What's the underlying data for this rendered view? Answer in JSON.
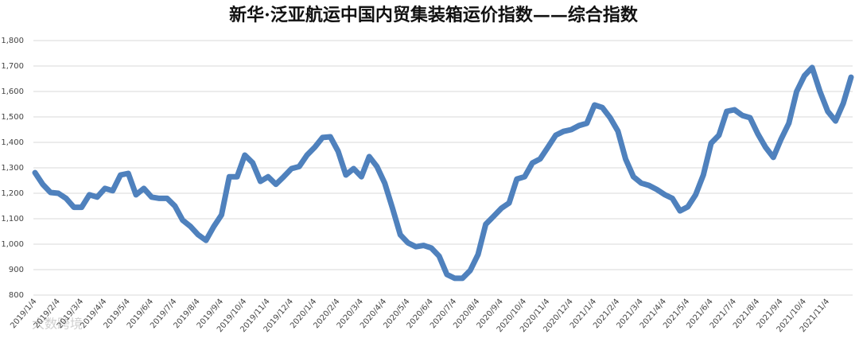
{
  "chart_data": {
    "type": "line",
    "title": "新华·泛亚航运中国内贸集装箱运价指数——综合指数",
    "watermark": "大数跨境",
    "categories": [
      "2019/1/4",
      null,
      null,
      "2019/2/4",
      null,
      null,
      "2019/3/4",
      null,
      null,
      "2019/4/4",
      null,
      null,
      "2019/5/4",
      null,
      null,
      "2019/6/4",
      null,
      null,
      "2019/7/4",
      null,
      null,
      "2019/8/4",
      null,
      null,
      "2019/9/4",
      null,
      null,
      "2019/10/4",
      null,
      null,
      "2019/11/4",
      null,
      null,
      "2019/12/4",
      null,
      null,
      "2020/1/4",
      null,
      null,
      "2020/2/4",
      null,
      null,
      "2020/3/4",
      null,
      null,
      "2020/4/4",
      null,
      null,
      "2020/5/4",
      null,
      null,
      "2020/6/4",
      null,
      null,
      "2020/7/4",
      null,
      null,
      "2020/8/4",
      null,
      null,
      "2020/9/4",
      null,
      null,
      "2020/10/4",
      null,
      null,
      "2020/11/4",
      null,
      null,
      "2020/12/4",
      null,
      null,
      "2021/1/4",
      null,
      null,
      "2021/2/4",
      null,
      null,
      "2021/3/4",
      null,
      null,
      "2021/4/4",
      null,
      null,
      "2021/5/4",
      null,
      null,
      "2021/6/4",
      null,
      null,
      "2021/7/4",
      null,
      null,
      "2021/8/4",
      null,
      null,
      "2021/9/4",
      null,
      null,
      "2021/10/4",
      null,
      null,
      "2021/11/4",
      null,
      null,
      null
    ],
    "series": [
      {
        "name": "综合指数",
        "color": "#4f81bd",
        "values": [
          1281,
          1235,
          1203,
          1200,
          1180,
          1145,
          1145,
          1194,
          1185,
          1219,
          1210,
          1272,
          1278,
          1194,
          1219,
          1185,
          1180,
          1180,
          1150,
          1094,
          1070,
          1037,
          1015,
          1069,
          1115,
          1265,
          1265,
          1350,
          1320,
          1247,
          1265,
          1235,
          1265,
          1297,
          1305,
          1350,
          1381,
          1419,
          1422,
          1365,
          1272,
          1297,
          1265,
          1344,
          1305,
          1240,
          1141,
          1037,
          1005,
          990,
          995,
          985,
          953,
          881,
          866,
          866,
          897,
          959,
          1078,
          1109,
          1141,
          1162,
          1256,
          1265,
          1319,
          1335,
          1381,
          1428,
          1443,
          1450,
          1466,
          1475,
          1547,
          1537,
          1497,
          1444,
          1334,
          1265,
          1240,
          1231,
          1215,
          1195,
          1180,
          1131,
          1147,
          1194,
          1272,
          1397,
          1428,
          1522,
          1528,
          1506,
          1497,
          1434,
          1381,
          1341,
          1413,
          1475,
          1600,
          1662,
          1694,
          1600,
          1522,
          1484,
          1553,
          1656
        ]
      }
    ],
    "ylim": [
      800,
      1800
    ],
    "yticks": [
      {
        "value": 800,
        "label": "800"
      },
      {
        "value": 900,
        "label": "900"
      },
      {
        "value": 1000,
        "label": "1,000"
      },
      {
        "value": 1100,
        "label": "1,100"
      },
      {
        "value": 1200,
        "label": "1,200"
      },
      {
        "value": 1300,
        "label": "1,300"
      },
      {
        "value": 1400,
        "label": "1,400"
      },
      {
        "value": 1500,
        "label": "1,500"
      },
      {
        "value": 1600,
        "label": "1,600"
      },
      {
        "value": 1700,
        "label": "1,700"
      },
      {
        "value": 1800,
        "label": "1,800"
      }
    ],
    "grid": true
  }
}
